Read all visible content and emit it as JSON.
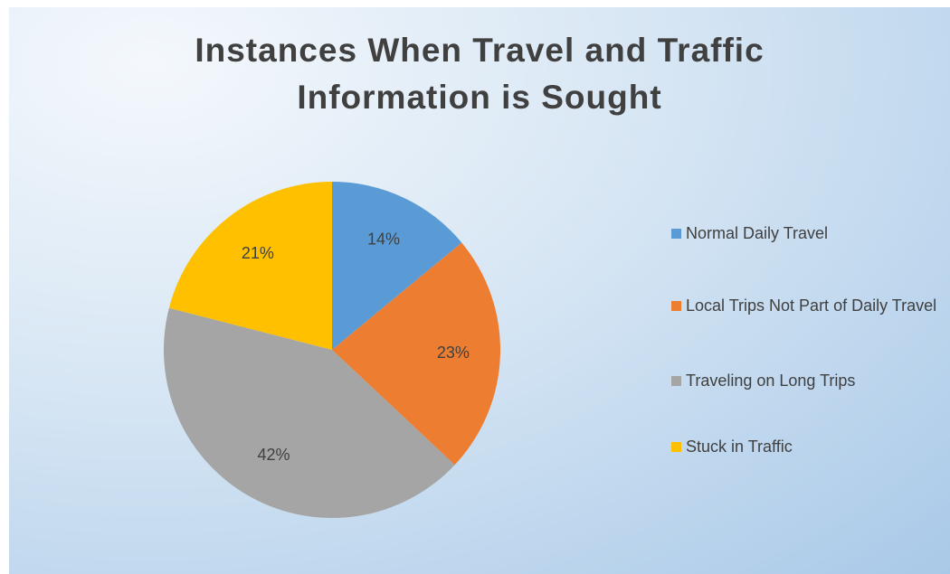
{
  "chart_data": {
    "type": "pie",
    "title": "Instances When Travel and Traffic Information is Sought",
    "categories": [
      "Normal Daily Travel",
      "Local Trips Not Part of Daily Travel",
      "Traveling on Long Trips",
      "Stuck in Traffic"
    ],
    "values": [
      14,
      23,
      42,
      21
    ],
    "value_labels": [
      "14%",
      "23%",
      "42%",
      "21%"
    ],
    "colors": [
      "#5b9bd5",
      "#ed7d31",
      "#a5a5a5",
      "#ffc000"
    ],
    "legend": "right"
  }
}
